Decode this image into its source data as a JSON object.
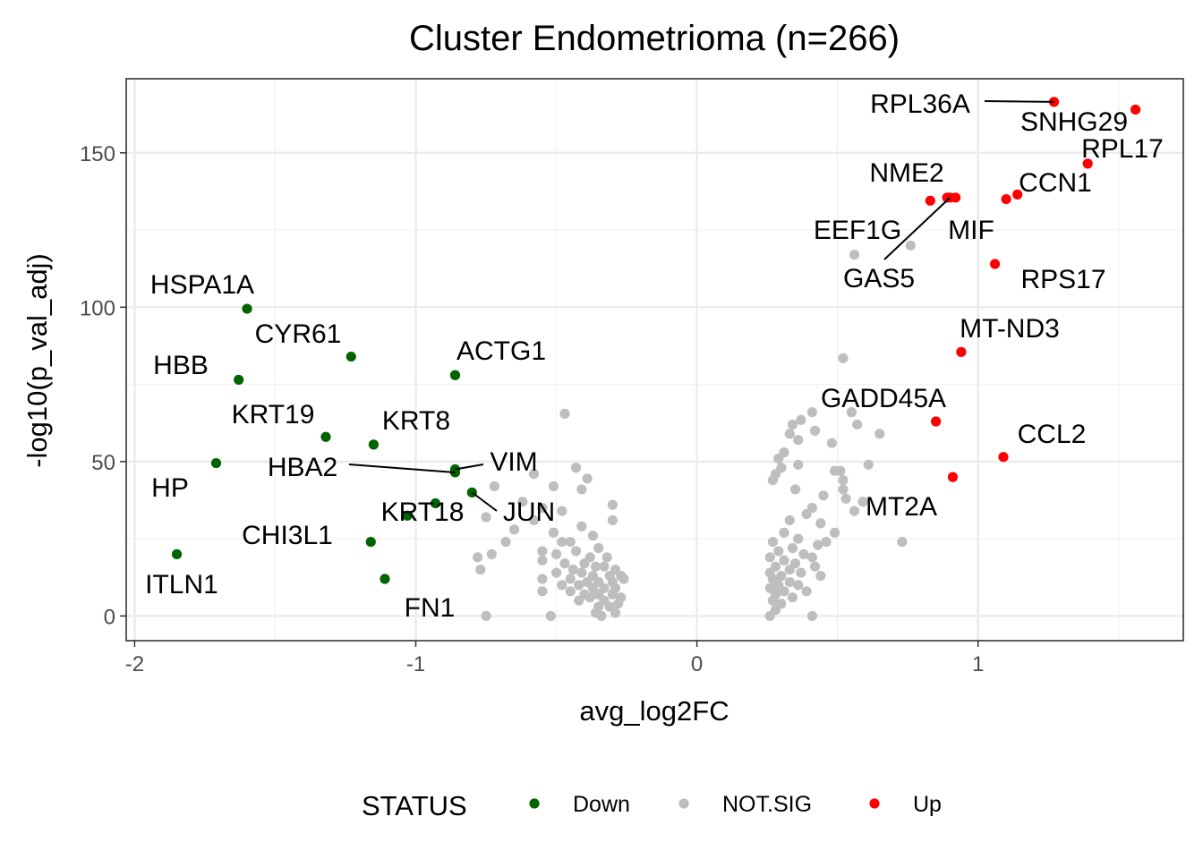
{
  "chart_data": {
    "type": "scatter",
    "title": "Cluster Endometrioma (n=266)",
    "xlabel": "avg_log2FC",
    "ylabel": "-log10(p_val_adj)",
    "xlim": [
      -2.03,
      1.73
    ],
    "ylim": [
      -8,
      174
    ],
    "x_ticks": [
      "-2",
      "-1",
      "0",
      "1"
    ],
    "x_tick_values": [
      -2,
      -1,
      0,
      1
    ],
    "y_ticks": [
      "0",
      "50",
      "100",
      "150"
    ],
    "y_tick_values": [
      0,
      50,
      100,
      150
    ],
    "grid": true,
    "legend": {
      "title": "STATUS",
      "position": "bottom",
      "entries": [
        {
          "key": "Down",
          "label": "Down",
          "color": "#006400"
        },
        {
          "key": "NOT.SIG",
          "label": "NOT.SIG",
          "color": "#bebebe"
        },
        {
          "key": "Up",
          "label": "Up",
          "color": "#ff0000"
        }
      ]
    },
    "series": [
      {
        "name": "Down",
        "color": "#006400",
        "points": [
          {
            "x": -1.6,
            "y": 99.5,
            "gene": "HSPA1A"
          },
          {
            "x": -1.23,
            "y": 84,
            "gene": "CYR61"
          },
          {
            "x": -1.63,
            "y": 76.5,
            "gene": "HBB"
          },
          {
            "x": -0.86,
            "y": 78,
            "gene": "ACTG1"
          },
          {
            "x": -1.32,
            "y": 58,
            "gene": "KRT19"
          },
          {
            "x": -1.15,
            "y": 55.5,
            "gene": "KRT8"
          },
          {
            "x": -1.71,
            "y": 49.5,
            "gene": "HP"
          },
          {
            "x": -0.86,
            "y": 46.5,
            "gene": "HBA2"
          },
          {
            "x": -0.86,
            "y": 47.5,
            "gene": "VIM"
          },
          {
            "x": -0.8,
            "y": 40,
            "gene": "JUN"
          },
          {
            "x": -0.93,
            "y": 36.5,
            "gene": "KRT18"
          },
          {
            "x": -1.03,
            "y": 32.5,
            "gene": ""
          },
          {
            "x": -1.16,
            "y": 24,
            "gene": "CHI3L1"
          },
          {
            "x": -1.11,
            "y": 12,
            "gene": "FN1"
          },
          {
            "x": -1.85,
            "y": 20,
            "gene": "ITLN1"
          }
        ]
      },
      {
        "name": "NOT.SIG",
        "color": "#bebebe",
        "points": [
          {
            "x": 0.52,
            "y": 83.5
          },
          {
            "x": 0.76,
            "y": 120
          },
          {
            "x": 0.56,
            "y": 117
          },
          {
            "x": -0.47,
            "y": 65.5
          },
          {
            "x": 0.41,
            "y": 66
          },
          {
            "x": 0.37,
            "y": 63.5
          },
          {
            "x": 0.34,
            "y": 62
          },
          {
            "x": 0.42,
            "y": 60
          },
          {
            "x": 0.57,
            "y": 62
          },
          {
            "x": 0.33,
            "y": 59
          },
          {
            "x": 0.36,
            "y": 57
          },
          {
            "x": 0.48,
            "y": 56
          },
          {
            "x": 0.31,
            "y": 53
          },
          {
            "x": 0.29,
            "y": 51
          },
          {
            "x": 0.55,
            "y": 66
          },
          {
            "x": 0.65,
            "y": 59
          },
          {
            "x": 0.36,
            "y": 49
          },
          {
            "x": 0.3,
            "y": 48
          },
          {
            "x": 0.51,
            "y": 47
          },
          {
            "x": 0.61,
            "y": 49
          },
          {
            "x": 0.28,
            "y": 46
          },
          {
            "x": 0.27,
            "y": 44
          },
          {
            "x": 0.52,
            "y": 44
          },
          {
            "x": 0.35,
            "y": 41
          },
          {
            "x": 0.45,
            "y": 39
          },
          {
            "x": 0.53,
            "y": 38
          },
          {
            "x": 0.59,
            "y": 37
          },
          {
            "x": 0.56,
            "y": 34
          },
          {
            "x": 0.41,
            "y": 35
          },
          {
            "x": 0.33,
            "y": 31
          },
          {
            "x": 0.39,
            "y": 33
          },
          {
            "x": 0.44,
            "y": 30
          },
          {
            "x": 0.49,
            "y": 27
          },
          {
            "x": 0.31,
            "y": 27
          },
          {
            "x": 0.36,
            "y": 25
          },
          {
            "x": 0.27,
            "y": 24
          },
          {
            "x": 0.43,
            "y": 23
          },
          {
            "x": 0.46,
            "y": 24
          },
          {
            "x": 0.34,
            "y": 22
          },
          {
            "x": 0.29,
            "y": 21
          },
          {
            "x": 0.38,
            "y": 20
          },
          {
            "x": 0.41,
            "y": 19
          },
          {
            "x": 0.26,
            "y": 19
          },
          {
            "x": 0.31,
            "y": 18
          },
          {
            "x": 0.35,
            "y": 17
          },
          {
            "x": 0.28,
            "y": 16
          },
          {
            "x": 0.42,
            "y": 16
          },
          {
            "x": 0.33,
            "y": 15
          },
          {
            "x": 0.26,
            "y": 14
          },
          {
            "x": 0.3,
            "y": 13
          },
          {
            "x": 0.37,
            "y": 14
          },
          {
            "x": 0.44,
            "y": 13
          },
          {
            "x": 0.27,
            "y": 12
          },
          {
            "x": 0.33,
            "y": 11
          },
          {
            "x": 0.29,
            "y": 10
          },
          {
            "x": 0.36,
            "y": 10
          },
          {
            "x": 0.26,
            "y": 9
          },
          {
            "x": 0.31,
            "y": 8
          },
          {
            "x": 0.39,
            "y": 8
          },
          {
            "x": 0.28,
            "y": 7
          },
          {
            "x": 0.34,
            "y": 6
          },
          {
            "x": 0.27,
            "y": 5
          },
          {
            "x": 0.26,
            "y": 0
          },
          {
            "x": 0.28,
            "y": 2
          },
          {
            "x": 0.41,
            "y": 0
          },
          {
            "x": 0.3,
            "y": 4
          },
          {
            "x": 0.73,
            "y": 24
          },
          {
            "x": 0.49,
            "y": 47
          },
          {
            "x": 0.52,
            "y": 41
          },
          {
            "x": -0.58,
            "y": 46
          },
          {
            "x": -0.51,
            "y": 42
          },
          {
            "x": -0.43,
            "y": 48
          },
          {
            "x": -0.39,
            "y": 44.5
          },
          {
            "x": -0.41,
            "y": 41
          },
          {
            "x": -0.62,
            "y": 37
          },
          {
            "x": -0.55,
            "y": 35
          },
          {
            "x": -0.48,
            "y": 34
          },
          {
            "x": -0.58,
            "y": 31
          },
          {
            "x": -0.3,
            "y": 36
          },
          {
            "x": -0.3,
            "y": 31
          },
          {
            "x": -0.51,
            "y": 27
          },
          {
            "x": -0.41,
            "y": 29
          },
          {
            "x": -0.37,
            "y": 26
          },
          {
            "x": -0.65,
            "y": 28
          },
          {
            "x": -0.48,
            "y": 24
          },
          {
            "x": -0.45,
            "y": 24
          },
          {
            "x": -0.35,
            "y": 22
          },
          {
            "x": -0.55,
            "y": 21
          },
          {
            "x": -0.5,
            "y": 20
          },
          {
            "x": -0.43,
            "y": 21
          },
          {
            "x": -0.38,
            "y": 19
          },
          {
            "x": -0.32,
            "y": 19
          },
          {
            "x": -0.55,
            "y": 18
          },
          {
            "x": -0.47,
            "y": 17
          },
          {
            "x": -0.4,
            "y": 17
          },
          {
            "x": -0.36,
            "y": 16
          },
          {
            "x": -0.33,
            "y": 16
          },
          {
            "x": -0.29,
            "y": 15
          },
          {
            "x": -0.44,
            "y": 15
          },
          {
            "x": -0.5,
            "y": 14
          },
          {
            "x": -0.41,
            "y": 14
          },
          {
            "x": -0.37,
            "y": 13
          },
          {
            "x": -0.31,
            "y": 13
          },
          {
            "x": -0.27,
            "y": 13
          },
          {
            "x": -0.55,
            "y": 12
          },
          {
            "x": -0.45,
            "y": 12
          },
          {
            "x": -0.39,
            "y": 11
          },
          {
            "x": -0.35,
            "y": 11
          },
          {
            "x": -0.3,
            "y": 11
          },
          {
            "x": -0.26,
            "y": 12
          },
          {
            "x": -0.48,
            "y": 10
          },
          {
            "x": -0.42,
            "y": 10
          },
          {
            "x": -0.37,
            "y": 9
          },
          {
            "x": -0.33,
            "y": 9
          },
          {
            "x": -0.29,
            "y": 9
          },
          {
            "x": -0.55,
            "y": 8
          },
          {
            "x": -0.45,
            "y": 8
          },
          {
            "x": -0.4,
            "y": 7
          },
          {
            "x": -0.35,
            "y": 7
          },
          {
            "x": -0.3,
            "y": 7
          },
          {
            "x": -0.27,
            "y": 6
          },
          {
            "x": -0.38,
            "y": 6
          },
          {
            "x": -0.42,
            "y": 5
          },
          {
            "x": -0.33,
            "y": 5
          },
          {
            "x": -0.28,
            "y": 4
          },
          {
            "x": -0.35,
            "y": 3
          },
          {
            "x": -0.31,
            "y": 3
          },
          {
            "x": -0.29,
            "y": 1
          },
          {
            "x": -0.36,
            "y": 1
          },
          {
            "x": -0.34,
            "y": 0
          },
          {
            "x": -0.52,
            "y": 0
          },
          {
            "x": -0.75,
            "y": 0
          },
          {
            "x": -0.77,
            "y": 15
          },
          {
            "x": -0.68,
            "y": 24
          },
          {
            "x": -0.73,
            "y": 20
          },
          {
            "x": -0.78,
            "y": 19
          },
          {
            "x": -0.75,
            "y": 32
          },
          {
            "x": -0.72,
            "y": 42
          }
        ]
      },
      {
        "name": "Up",
        "color": "#ff0000",
        "points": [
          {
            "x": 1.27,
            "y": 166.5,
            "gene": "RPL36A"
          },
          {
            "x": 1.56,
            "y": 164,
            "gene": "SNHG29"
          },
          {
            "x": 1.39,
            "y": 146.5,
            "gene": "RPL17"
          },
          {
            "x": 1.14,
            "y": 136.5,
            "gene": "CCN1"
          },
          {
            "x": 1.1,
            "y": 135,
            "gene": ""
          },
          {
            "x": 0.89,
            "y": 135.5,
            "gene": "NME2"
          },
          {
            "x": 0.92,
            "y": 135.5,
            "gene": "MIF"
          },
          {
            "x": 0.83,
            "y": 134.5,
            "gene": "EEF1G"
          },
          {
            "x": 0.9,
            "y": 135.5,
            "gene": "GAS5"
          },
          {
            "x": 1.06,
            "y": 114,
            "gene": "RPS17"
          },
          {
            "x": 0.94,
            "y": 85.5,
            "gene": "MT-ND3"
          },
          {
            "x": 0.85,
            "y": 63,
            "gene": "GADD45A"
          },
          {
            "x": 1.09,
            "y": 51.5,
            "gene": "CCL2"
          },
          {
            "x": 0.91,
            "y": 45,
            "gene": "MT2A"
          }
        ]
      }
    ]
  }
}
